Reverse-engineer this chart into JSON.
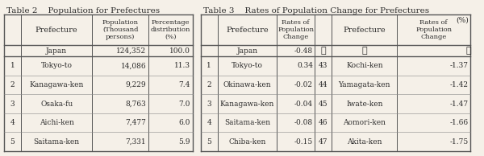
{
  "table2_title": "Table 2    Population for Prefectures",
  "table3_title": "Table 3    Rates of Population Change for Prefectures",
  "table2_headers": [
    "",
    "Prefecture",
    "Population\n(Thousand\npersons)",
    "Percentage\ndistribution\n(%)"
  ],
  "table2_japan": [
    "",
    "Japan",
    "124,352",
    "100.0"
  ],
  "table2_rows": [
    [
      "1",
      "Tokyo-to",
      "14,086",
      "11.3"
    ],
    [
      "2",
      "Kanagawa-ken",
      "9,229",
      "7.4"
    ],
    [
      "3",
      "Osaka-fu",
      "8,763",
      "7.0"
    ],
    [
      "4",
      "Aichi-ken",
      "7,477",
      "6.0"
    ],
    [
      "5",
      "Saitama-ken",
      "7,331",
      "5.9"
    ]
  ],
  "table3_headers": [
    "",
    "Prefecture",
    "Rates of\nPopulation\nChange",
    "",
    "Prefecture",
    "Rates of\nPopulation\nChange"
  ],
  "table3_japan": [
    "",
    "Japan",
    "-0.48",
    "⋮",
    "⋮",
    "⋮"
  ],
  "table3_rows": [
    [
      "1",
      "Tokyo-to",
      "0.34",
      "43",
      "Kochi-ken",
      "-1.37"
    ],
    [
      "2",
      "Okinawa-ken",
      "-0.02",
      "44",
      "Yamagata-ken",
      "-1.42"
    ],
    [
      "3",
      "Kanagawa-ken",
      "-0.04",
      "45",
      "Iwate-ken",
      "-1.47"
    ],
    [
      "4",
      "Saitama-ken",
      "-0.08",
      "46",
      "Aomori-ken",
      "-1.66"
    ],
    [
      "5",
      "Chiba-ken",
      "-0.15",
      "47",
      "Akita-ken",
      "-1.75"
    ]
  ],
  "percent_note": "(%)",
  "bg_color": "#f5f0e8",
  "text_color": "#2c2c2c",
  "line_color": "#555555",
  "header_bg": "#e8e0d0"
}
